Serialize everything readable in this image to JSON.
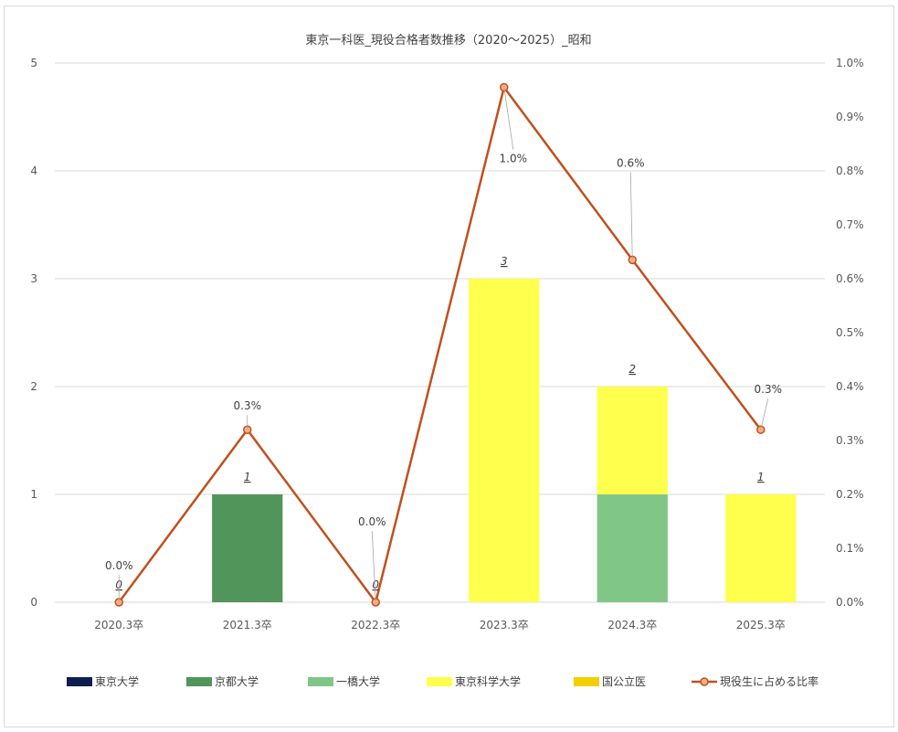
{
  "chart_data": {
    "type": "bar",
    "title": "東京一科医_現役合格者数推移（2020～2025）_昭和",
    "categories": [
      "2020.3卒",
      "2021.3卒",
      "2022.3卒",
      "2023.3卒",
      "2024.3卒",
      "2025.3卒"
    ],
    "stacked": true,
    "ylim": [
      0,
      5
    ],
    "y_ticks": [
      "0",
      "1",
      "2",
      "3",
      "4",
      "5"
    ],
    "y2lim": [
      0,
      1.0
    ],
    "y2_ticks": [
      "0.0%",
      "0.1%",
      "0.2%",
      "0.3%",
      "0.4%",
      "0.5%",
      "0.6%",
      "0.7%",
      "0.8%",
      "0.9%",
      "1.0%"
    ],
    "grid": true,
    "legend_position": "bottom",
    "series": [
      {
        "name": "東京大学",
        "type": "bar",
        "color": "#0e1e4e",
        "values": [
          0,
          0,
          0,
          0,
          0,
          0
        ]
      },
      {
        "name": "京都大学",
        "type": "bar",
        "color": "#52955a",
        "values": [
          0,
          1,
          0,
          0,
          0,
          0
        ]
      },
      {
        "name": "一橋大学",
        "type": "bar",
        "color": "#80c687",
        "values": [
          0,
          0,
          0,
          0,
          1,
          0
        ]
      },
      {
        "name": "東京科学大学",
        "type": "bar",
        "color": "#ffff4d",
        "values": [
          0,
          0,
          0,
          3,
          1,
          1
        ]
      },
      {
        "name": "国公立医",
        "type": "bar",
        "color": "#f2cf00",
        "values": [
          0,
          0,
          0,
          0,
          0,
          0
        ]
      },
      {
        "name": "現役生に占める比率",
        "type": "line",
        "axis": "secondary",
        "color": "#c0501d",
        "values": [
          0.0,
          0.32,
          0.0,
          0.955,
          0.635,
          0.32
        ],
        "labels": [
          "0.0%",
          "0.3%",
          "0.0%",
          "1.0%",
          "0.6%",
          "0.3%"
        ]
      }
    ],
    "totals": [
      "0",
      "1",
      "0",
      "3",
      "2",
      "1"
    ]
  }
}
